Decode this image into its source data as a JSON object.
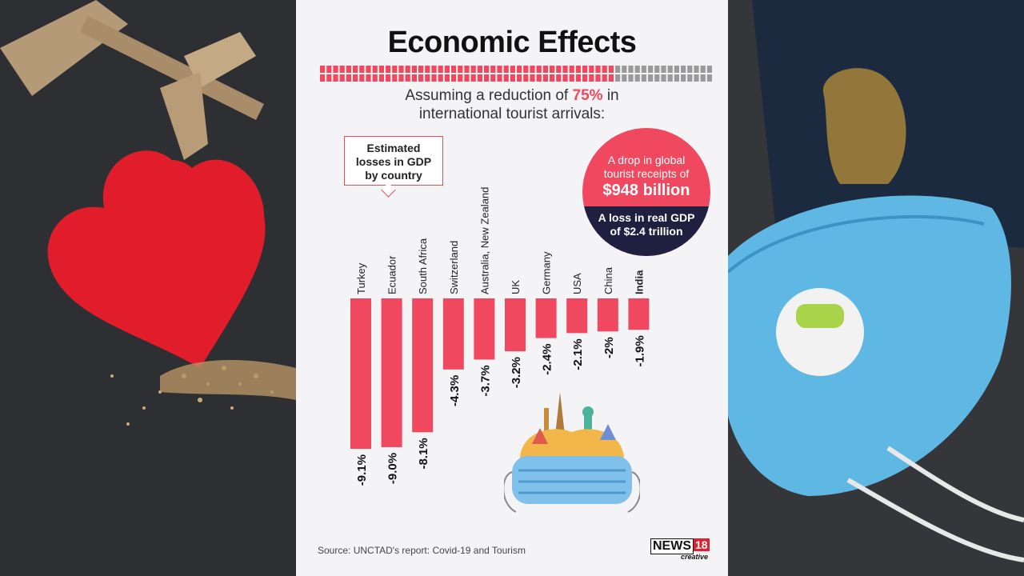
{
  "header": {
    "title": "Economic Effects",
    "subtitle_pre": "Assuming a reduction of",
    "subtitle_pct": "75%",
    "subtitle_post": "in",
    "subtitle_line2": "international tourist arrivals:",
    "progress_bar": {
      "value_percent": 75
    }
  },
  "callout": {
    "line1": "Estimated",
    "line2": "losses in GDP",
    "line3": "by country"
  },
  "circle": {
    "line1": "A drop in global",
    "line2": "tourist receipts of",
    "big": "$948 billion",
    "bottom1": "A loss in real GDP",
    "bottom2": "of $2.4 trillion"
  },
  "footer": {
    "source": "Source: UNCTAD's report: Covid-19 and Tourism",
    "logo_main": "NEWS",
    "logo_num": "18",
    "logo_sub": "creative"
  },
  "colors": {
    "accent": "#f0485f",
    "navy": "#1f2040",
    "bar_empty": "#9a9a9a",
    "panel_bg": "#f4f4f6"
  },
  "chart_data": {
    "type": "bar",
    "categories": [
      "Turkey",
      "Ecuador",
      "South Africa",
      "Switzerland",
      "Australia, New Zealand",
      "UK",
      "Germany",
      "USA",
      "China",
      "India"
    ],
    "values": [
      -9.1,
      -9.0,
      -8.1,
      -4.3,
      -3.7,
      -3.2,
      -2.4,
      -2.1,
      -2,
      -1.9
    ],
    "labels": [
      "-9.1%",
      "-9.0%",
      "-8.1%",
      "-4.3%",
      "-3.7%",
      "-3.2%",
      "-2.4%",
      "-2.1%",
      "-2%",
      "-1.9%"
    ],
    "highlight": "India",
    "ylim": [
      -9.1,
      0
    ],
    "grid": false,
    "xlabel": "",
    "ylabel": ""
  }
}
